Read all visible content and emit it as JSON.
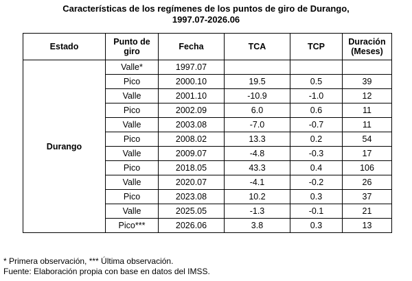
{
  "title_line1": "Características de los regímenes de los puntos de giro de Durango,",
  "title_line2": "1997.07-2026.06",
  "headers": {
    "estado": "Estado",
    "punto_line1": "Punto de",
    "punto_line2": "giro",
    "fecha": "Fecha",
    "tca": "TCA",
    "tcp": "TCP",
    "duracion_line1": "Duración",
    "duracion_line2": "(Meses)"
  },
  "estado": "Durango",
  "rows": [
    {
      "punto": "Valle*",
      "fecha": "1997.07",
      "tca": "",
      "tcp": "",
      "duracion": ""
    },
    {
      "punto": "Pico",
      "fecha": "2000.10",
      "tca": "19.5",
      "tcp": "0.5",
      "duracion": "39"
    },
    {
      "punto": "Valle",
      "fecha": "2001.10",
      "tca": "-10.9",
      "tcp": "-1.0",
      "duracion": "12"
    },
    {
      "punto": "Pico",
      "fecha": "2002.09",
      "tca": "6.0",
      "tcp": "0.6",
      "duracion": "11"
    },
    {
      "punto": "Valle",
      "fecha": "2003.08",
      "tca": "-7.0",
      "tcp": "-0.7",
      "duracion": "11"
    },
    {
      "punto": "Pico",
      "fecha": "2008.02",
      "tca": "13.3",
      "tcp": "0.2",
      "duracion": "54"
    },
    {
      "punto": "Valle",
      "fecha": "2009.07",
      "tca": "-4.8",
      "tcp": "-0.3",
      "duracion": "17"
    },
    {
      "punto": "Pico",
      "fecha": "2018.05",
      "tca": "43.3",
      "tcp": "0.4",
      "duracion": "106"
    },
    {
      "punto": "Valle",
      "fecha": "2020.07",
      "tca": "-4.1",
      "tcp": "-0.2",
      "duracion": "26"
    },
    {
      "punto": "Pico",
      "fecha": "2023.08",
      "tca": "10.2",
      "tcp": "0.3",
      "duracion": "37"
    },
    {
      "punto": "Valle",
      "fecha": "2025.05",
      "tca": "-1.3",
      "tcp": "-0.1",
      "duracion": "21"
    },
    {
      "punto": "Pico***",
      "fecha": "2026.06",
      "tca": "3.8",
      "tcp": "0.3",
      "duracion": "13"
    }
  ],
  "notes": {
    "line1": "* Primera observación, *** Última observación.",
    "line2": "Fuente: Elaboración propia con base en datos del IMSS."
  }
}
